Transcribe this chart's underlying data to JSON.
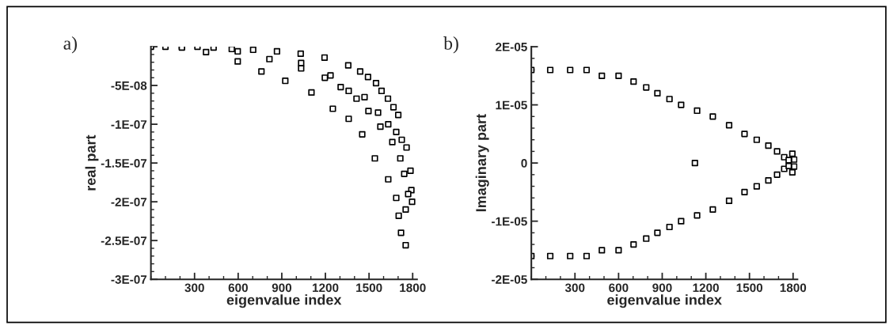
{
  "chart_data": [
    {
      "type": "scatter",
      "title": "a)",
      "xlabel": "eigenvalue index",
      "ylabel": "real part",
      "marker": "square",
      "grid": false,
      "legend": false,
      "xlim": [
        0,
        1830
      ],
      "xticks": [
        300,
        600,
        900,
        1200,
        1500,
        1800
      ],
      "ylim": [
        -3e-07,
        0
      ],
      "yticks": [
        {
          "value": -3e-07,
          "label": "-3E-07"
        },
        {
          "value": -2.5e-07,
          "label": "-2.5E-07"
        },
        {
          "value": -2e-07,
          "label": "-2E-07"
        },
        {
          "value": -1.5e-07,
          "label": "-1.5E-07"
        },
        {
          "value": -1e-07,
          "label": "-1E-07"
        },
        {
          "value": -5e-08,
          "label": "-5E-08"
        },
        {
          "value": 0,
          "label": null
        }
      ],
      "series": [
        {
          "color": "#000000",
          "x": [
            0,
            100,
            213,
            320,
            431,
            556,
            703,
            867,
            1030,
            1194,
            1357,
            1439,
            1493,
            1548,
            1586,
            1630,
            1668,
            1701
          ],
          "values": [
            0,
            0,
            0,
            0,
            -1e-09,
            -3e-09,
            -4e-09,
            -6e-09,
            -9e-09,
            -1.4e-08,
            -2.4e-08,
            -3.2e-08,
            -3.9e-08,
            -4.7e-08,
            -5.7e-08,
            -6.7e-08,
            -7.8e-08,
            -8.8e-08
          ]
        },
        {
          "color": "#000000",
          "x": [
            597,
            815,
            1033,
            1196,
            1360,
            1469,
            1562,
            1632,
            1687,
            1725,
            1758,
            1785,
            1791,
            1796
          ],
          "values": [
            -6e-09,
            -1.6e-08,
            -2.8e-08,
            -4e-08,
            -5.7e-08,
            -6.5e-08,
            -8.5e-08,
            -1e-07,
            -1.1e-07,
            -1.2e-07,
            -1.3e-07,
            -1.6e-07,
            -1.85e-07,
            -2e-07
          ]
        },
        {
          "color": "#000000",
          "x": [
            213,
            379,
            597,
            760,
            924,
            1104,
            1251,
            1360,
            1453,
            1540,
            1632,
            1687,
            1704,
            1720,
            1752
          ],
          "values": [
            -1e-09,
            -7e-09,
            -1.9e-08,
            -3.2e-08,
            -4.4e-08,
            -5.9e-08,
            -8e-08,
            -9.3e-08,
            -1.13e-07,
            -1.44e-07,
            -1.71e-07,
            -1.95e-07,
            -2.18e-07,
            -2.4e-07,
            -2.56e-07
          ]
        },
        {
          "color": "#000000",
          "x": [
            1033,
            1235,
            1305,
            1414,
            1496,
            1578,
            1660,
            1715,
            1742,
            1769,
            1752
          ],
          "values": [
            -2.1e-08,
            -3.7e-08,
            -5.2e-08,
            -6.7e-08,
            -8.3e-08,
            -1.03e-07,
            -1.23e-07,
            -1.44e-07,
            -1.64e-07,
            -1.9e-07,
            -2.1e-07
          ]
        }
      ]
    },
    {
      "type": "scatter",
      "title": "b)",
      "xlabel": "eigenvalue index",
      "ylabel": "Imaginary part",
      "marker": "square",
      "grid": false,
      "legend": false,
      "xlim": [
        0,
        1830
      ],
      "xticks": [
        300,
        600,
        900,
        1200,
        1500,
        1800
      ],
      "ylim": [
        -2e-05,
        2e-05
      ],
      "yticks": [
        {
          "value": -2e-05,
          "label": "-2E-05"
        },
        {
          "value": -1e-05,
          "label": "-1E-05"
        },
        {
          "value": 0,
          "label": "0"
        },
        {
          "value": 1e-05,
          "label": "1E-05"
        },
        {
          "value": 2e-05,
          "label": "2E-05"
        }
      ],
      "series": [
        {
          "color": "#000000",
          "x": [
            0,
            130,
            267,
            380,
            485,
            600,
            703,
            790,
            867,
            950,
            1030,
            1140,
            1248,
            1360,
            1466,
            1550,
            1630,
            1690,
            1739,
            1770
          ],
          "values": [
            1.6e-05,
            1.6e-05,
            1.6e-05,
            1.6e-05,
            1.5e-05,
            1.5e-05,
            1.4e-05,
            1.3e-05,
            1.2e-05,
            1.1e-05,
            1e-05,
            9e-06,
            8e-06,
            6.5e-06,
            5e-06,
            4e-06,
            3e-06,
            2e-06,
            1e-06,
            5e-07
          ]
        },
        {
          "color": "#000000",
          "x": [
            0,
            130,
            267,
            380,
            485,
            600,
            703,
            790,
            867,
            950,
            1030,
            1140,
            1248,
            1360,
            1466,
            1550,
            1630,
            1690,
            1739,
            1770
          ],
          "values": [
            -1.6e-05,
            -1.6e-05,
            -1.6e-05,
            -1.6e-05,
            -1.5e-05,
            -1.5e-05,
            -1.4e-05,
            -1.3e-05,
            -1.2e-05,
            -1.1e-05,
            -1e-05,
            -9e-06,
            -8e-06,
            -6.5e-06,
            -5e-06,
            -4e-06,
            -3e-06,
            -2e-06,
            -1e-06,
            -5e-07
          ]
        },
        {
          "color": "#000000",
          "x": [
            1125,
            1795,
            1808,
            1808,
            1795
          ],
          "values": [
            0,
            1.6e-06,
            6e-07,
            -6e-07,
            -1.6e-06
          ]
        }
      ]
    }
  ]
}
